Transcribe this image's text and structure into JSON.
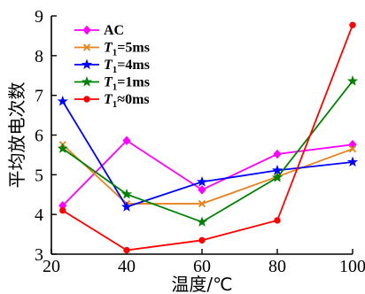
{
  "chart_data": {
    "type": "line",
    "xlabel": "温度/℃",
    "ylabel": "平均放电次数",
    "xlim": [
      20,
      100
    ],
    "ylim": [
      3,
      9
    ],
    "x_ticks": [
      "20",
      "40",
      "60",
      "80",
      "100"
    ],
    "y_ticks": [
      "3",
      "4",
      "5",
      "6",
      "7",
      "8",
      "9"
    ],
    "grid": false,
    "legend_position": "top-left",
    "series": [
      {
        "name": "AC",
        "legend_parts": [
          "AC",
          "",
          ""
        ],
        "color": "#ff00ff",
        "marker": "diamond",
        "x": [
          23,
          40,
          60,
          80,
          100
        ],
        "values": [
          4.22,
          5.86,
          4.62,
          5.52,
          5.76
        ]
      },
      {
        "name": "T1=5ms",
        "legend_parts": [
          "T",
          "1",
          "=5ms"
        ],
        "color": "#e8821e",
        "marker": "x",
        "x": [
          23,
          40,
          60,
          80,
          100
        ],
        "values": [
          5.76,
          4.27,
          4.27,
          4.95,
          5.65
        ]
      },
      {
        "name": "T1=4ms",
        "legend_parts": [
          "T",
          "1",
          "=4ms"
        ],
        "color": "#0000ff",
        "marker": "star",
        "x": [
          23,
          40,
          60,
          80,
          100
        ],
        "values": [
          6.85,
          4.19,
          4.82,
          5.11,
          5.32
        ]
      },
      {
        "name": "T1=1ms",
        "legend_parts": [
          "T",
          "1",
          "=1ms"
        ],
        "color": "#008000",
        "marker": "star",
        "x": [
          23,
          40,
          60,
          80,
          100
        ],
        "values": [
          5.66,
          4.51,
          3.81,
          4.93,
          7.36
        ]
      },
      {
        "name": "T1≈0ms",
        "legend_parts": [
          "T",
          "1",
          "≈0ms"
        ],
        "color": "#ff0000",
        "marker": "circle",
        "x": [
          23,
          40,
          60,
          80,
          100
        ],
        "values": [
          4.1,
          3.1,
          3.35,
          3.85,
          8.77
        ]
      }
    ]
  }
}
